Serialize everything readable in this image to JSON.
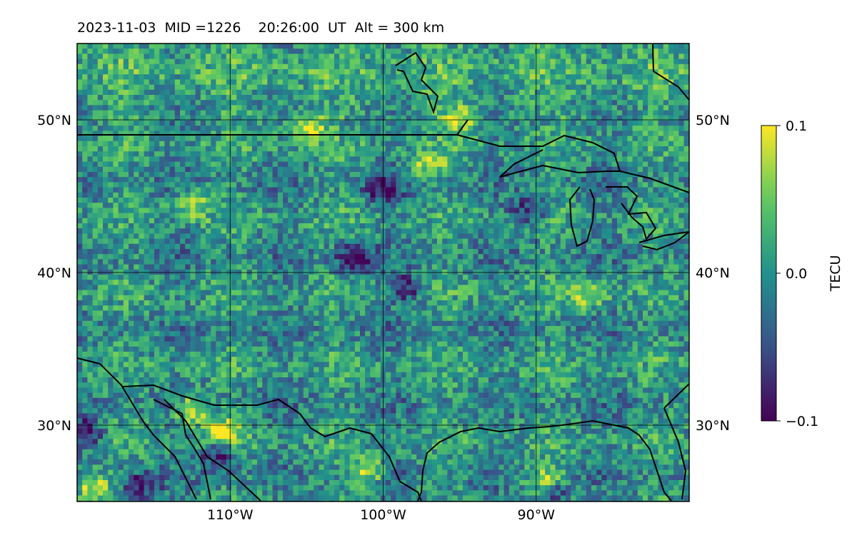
{
  "chart_data": {
    "type": "heatmap",
    "title": "2023-11-03  MID =1226    20:26:00  UT  Alt = 300 km",
    "x": {
      "label": "",
      "range": [
        -120,
        -80
      ],
      "ticks": [
        -110,
        -100,
        -90
      ],
      "tick_labels": [
        "110°W",
        "100°W",
        "90°W"
      ]
    },
    "y": {
      "label": "",
      "range": [
        25,
        55
      ],
      "ticks": [
        30,
        40,
        50
      ],
      "tick_labels": [
        "30°N",
        "40°N",
        "50°N"
      ]
    },
    "grid": true,
    "colormap": "viridis",
    "colorbar": {
      "label": "TECU",
      "range": [
        -0.1,
        0.1
      ],
      "ticks": [
        0.1,
        0.0,
        -0.1
      ],
      "tick_labels": [
        "0.1",
        "0.0",
        "−0.1"
      ]
    },
    "hotspots_high": [
      {
        "lon": -110.5,
        "lat": 29.5,
        "value": 0.1
      },
      {
        "lon": -112.5,
        "lat": 31.0,
        "value": 0.1
      },
      {
        "lon": -119.0,
        "lat": 26.0,
        "value": 0.1
      },
      {
        "lon": -101.0,
        "lat": 27.0,
        "value": 0.09
      },
      {
        "lon": -89.5,
        "lat": 26.3,
        "value": 0.1
      },
      {
        "lon": -105.0,
        "lat": 49.5,
        "value": 0.1
      },
      {
        "lon": -95.0,
        "lat": 50.0,
        "value": 0.08
      },
      {
        "lon": -97.0,
        "lat": 47.0,
        "value": 0.07
      },
      {
        "lon": -86.5,
        "lat": 38.5,
        "value": 0.07
      },
      {
        "lon": -112.5,
        "lat": 44.5,
        "value": 0.08
      }
    ],
    "hotspots_low": [
      {
        "lon": -110.7,
        "lat": 28.0,
        "value": -0.1
      },
      {
        "lon": -119.5,
        "lat": 29.5,
        "value": -0.1
      },
      {
        "lon": -116.0,
        "lat": 26.0,
        "value": -0.09
      },
      {
        "lon": -102.0,
        "lat": 41.0,
        "value": -0.1
      },
      {
        "lon": -100.0,
        "lat": 45.5,
        "value": -0.09
      },
      {
        "lon": -89.0,
        "lat": 25.5,
        "value": -0.09
      },
      {
        "lon": -90.5,
        "lat": 44.0,
        "value": -0.08
      },
      {
        "lon": -98.5,
        "lat": 39.0,
        "value": -0.08
      }
    ],
    "map_features": [
      "coastlines",
      "country borders",
      "Great Lakes"
    ]
  }
}
